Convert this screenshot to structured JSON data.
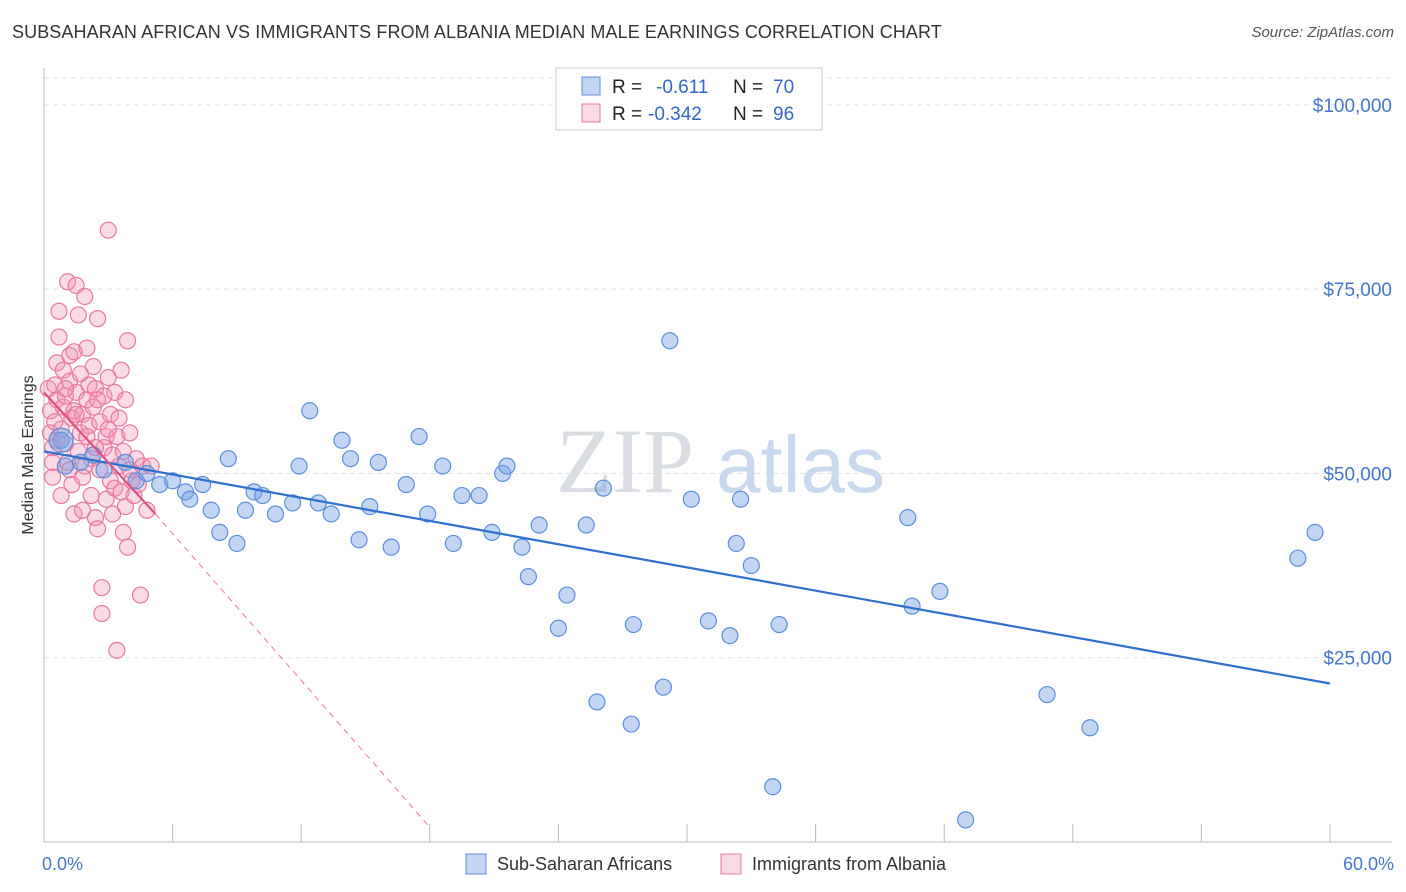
{
  "title": "SUBSAHARAN AFRICAN VS IMMIGRANTS FROM ALBANIA MEDIAN MALE EARNINGS CORRELATION CHART",
  "source": "Source: ZipAtlas.com",
  "watermark": {
    "zip": "ZIP",
    "atlas": "atlas"
  },
  "colors": {
    "blue": "#5b8fdb",
    "blue_fill": "rgba(120,165,230,0.45)",
    "blue_line": "#2f6fd0",
    "pink": "#e8789c",
    "pink_fill": "rgba(240,150,180,0.35)",
    "pink_line": "#e0507e",
    "grid": "#dde3ea",
    "tick_blue": "#4477cc"
  },
  "legend": {
    "rows": [
      {
        "r_label": "R =",
        "r_value": "-0.611",
        "n_label": "N =",
        "n_value": "70"
      },
      {
        "r_label": "R =",
        "r_value": "-0.342",
        "n_label": "N =",
        "n_value": "96"
      }
    ]
  },
  "chart_data": {
    "type": "scatter",
    "title": "SUBSAHARAN AFRICAN VS IMMIGRANTS FROM ALBANIA MEDIAN MALE EARNINGS CORRELATION CHART",
    "xlabel": "",
    "ylabel": "Median Male Earnings",
    "xlim": [
      0,
      60
    ],
    "ylim": [
      0,
      105000
    ],
    "x_tick_labels": {
      "left": "0.0%",
      "right": "60.0%"
    },
    "y_ticks": [
      {
        "value": 25000,
        "label": "$25,000"
      },
      {
        "value": 50000,
        "label": "$50,000"
      },
      {
        "value": 75000,
        "label": "$75,000"
      },
      {
        "value": 100000,
        "label": "$100,000"
      }
    ],
    "grid": true,
    "legend_position": "top-center",
    "series": [
      {
        "name": "Sub-Saharan Africans",
        "color": "#5b8fdb",
        "r": -0.611,
        "n": 70,
        "trend": {
          "x0": 0,
          "y0": 53000,
          "x1": 60,
          "y1": 21500
        },
        "points": [
          [
            0.8,
            54500
          ],
          [
            1.0,
            51000
          ],
          [
            1.7,
            51500
          ],
          [
            2.3,
            52500
          ],
          [
            2.8,
            50500
          ],
          [
            3.8,
            51500
          ],
          [
            4.3,
            49000
          ],
          [
            4.8,
            50000
          ],
          [
            5.4,
            48500
          ],
          [
            6.0,
            49000
          ],
          [
            6.6,
            47500
          ],
          [
            6.8,
            46500
          ],
          [
            7.4,
            48500
          ],
          [
            7.8,
            45000
          ],
          [
            8.2,
            42000
          ],
          [
            8.6,
            52000
          ],
          [
            9.0,
            40500
          ],
          [
            9.4,
            45000
          ],
          [
            9.8,
            47500
          ],
          [
            10.2,
            47000
          ],
          [
            10.8,
            44500
          ],
          [
            11.6,
            46000
          ],
          [
            11.9,
            51000
          ],
          [
            12.4,
            58500
          ],
          [
            12.8,
            46000
          ],
          [
            13.4,
            44500
          ],
          [
            13.9,
            54500
          ],
          [
            14.3,
            52000
          ],
          [
            14.7,
            41000
          ],
          [
            15.2,
            45500
          ],
          [
            15.6,
            51500
          ],
          [
            16.2,
            40000
          ],
          [
            16.9,
            48500
          ],
          [
            17.5,
            55000
          ],
          [
            17.9,
            44500
          ],
          [
            18.6,
            51000
          ],
          [
            19.1,
            40500
          ],
          [
            19.5,
            47000
          ],
          [
            20.3,
            47000
          ],
          [
            20.9,
            42000
          ],
          [
            21.4,
            50000
          ],
          [
            21.6,
            51000
          ],
          [
            22.3,
            40000
          ],
          [
            22.6,
            36000
          ],
          [
            23.1,
            43000
          ],
          [
            24.0,
            29000
          ],
          [
            24.4,
            33500
          ],
          [
            25.3,
            43000
          ],
          [
            25.8,
            19000
          ],
          [
            26.1,
            48000
          ],
          [
            27.4,
            16000
          ],
          [
            27.5,
            29500
          ],
          [
            28.9,
            21000
          ],
          [
            29.2,
            68000
          ],
          [
            30.2,
            46500
          ],
          [
            31.0,
            30000
          ],
          [
            32.0,
            28000
          ],
          [
            32.3,
            40500
          ],
          [
            32.5,
            46500
          ],
          [
            33.0,
            37500
          ],
          [
            34.0,
            7500
          ],
          [
            34.3,
            29500
          ],
          [
            40.3,
            44000
          ],
          [
            40.5,
            32000
          ],
          [
            41.8,
            34000
          ],
          [
            46.8,
            20000
          ],
          [
            48.8,
            15500
          ],
          [
            58.5,
            38500
          ],
          [
            59.3,
            42000
          ],
          [
            43.0,
            3000
          ]
        ]
      },
      {
        "name": "Immigrants from Albania",
        "color": "#e8789c",
        "r": -0.342,
        "n": 96,
        "trend": {
          "x0": 0,
          "y0": 61000,
          "x1": 5.2,
          "y1": 44500
        },
        "trend_extension": {
          "x0": 5.2,
          "y0": 44500,
          "x1": 18.0,
          "y1": 2000
        },
        "points": [
          [
            0.2,
            61500
          ],
          [
            0.3,
            58500
          ],
          [
            0.3,
            55500
          ],
          [
            0.4,
            53500
          ],
          [
            0.4,
            51500
          ],
          [
            0.4,
            49500
          ],
          [
            0.5,
            57000
          ],
          [
            0.5,
            62000
          ],
          [
            0.6,
            65000
          ],
          [
            0.6,
            60000
          ],
          [
            0.7,
            68500
          ],
          [
            0.7,
            72000
          ],
          [
            0.8,
            56000
          ],
          [
            0.8,
            47000
          ],
          [
            0.9,
            64000
          ],
          [
            0.9,
            59000
          ],
          [
            1.0,
            60500
          ],
          [
            1.0,
            54000
          ],
          [
            1.1,
            76000
          ],
          [
            1.1,
            51500
          ],
          [
            1.2,
            62500
          ],
          [
            1.2,
            66000
          ],
          [
            1.3,
            57500
          ],
          [
            1.3,
            48500
          ],
          [
            1.4,
            58500
          ],
          [
            1.4,
            44500
          ],
          [
            1.5,
            61000
          ],
          [
            1.5,
            75500
          ],
          [
            1.6,
            53000
          ],
          [
            1.6,
            71500
          ],
          [
            1.7,
            55500
          ],
          [
            1.7,
            63500
          ],
          [
            1.8,
            58000
          ],
          [
            1.8,
            45000
          ],
          [
            1.9,
            74000
          ],
          [
            1.9,
            51000
          ],
          [
            2.0,
            60000
          ],
          [
            2.0,
            67000
          ],
          [
            2.1,
            62000
          ],
          [
            2.1,
            56500
          ],
          [
            2.2,
            52000
          ],
          [
            2.2,
            47000
          ],
          [
            2.3,
            59000
          ],
          [
            2.3,
            64500
          ],
          [
            2.4,
            61500
          ],
          [
            2.4,
            44000
          ],
          [
            2.5,
            42500
          ],
          [
            2.5,
            71000
          ],
          [
            2.6,
            57000
          ],
          [
            2.6,
            50500
          ],
          [
            2.7,
            34500
          ],
          [
            2.7,
            31000
          ],
          [
            2.8,
            53500
          ],
          [
            2.8,
            60500
          ],
          [
            2.9,
            46500
          ],
          [
            2.9,
            55000
          ],
          [
            3.0,
            83000
          ],
          [
            3.0,
            63000
          ],
          [
            3.1,
            58000
          ],
          [
            3.1,
            49000
          ],
          [
            3.2,
            52500
          ],
          [
            3.2,
            44500
          ],
          [
            3.3,
            61000
          ],
          [
            3.3,
            48000
          ],
          [
            3.4,
            26000
          ],
          [
            3.4,
            55000
          ],
          [
            3.5,
            57500
          ],
          [
            3.5,
            51000
          ],
          [
            3.6,
            47500
          ],
          [
            3.6,
            64000
          ],
          [
            3.7,
            53000
          ],
          [
            3.7,
            42000
          ],
          [
            3.8,
            45500
          ],
          [
            3.8,
            60000
          ],
          [
            3.9,
            68000
          ],
          [
            3.9,
            40000
          ],
          [
            4.0,
            55500
          ],
          [
            4.0,
            50500
          ],
          [
            4.1,
            49000
          ],
          [
            4.2,
            47000
          ],
          [
            4.3,
            52000
          ],
          [
            4.4,
            48500
          ],
          [
            4.5,
            33500
          ],
          [
            4.6,
            51000
          ],
          [
            4.8,
            45000
          ],
          [
            5.0,
            51000
          ],
          [
            1.0,
            61500
          ],
          [
            1.5,
            58000
          ],
          [
            2.0,
            55000
          ],
          [
            2.5,
            60000
          ],
          [
            0.6,
            54500
          ],
          [
            1.2,
            50500
          ],
          [
            1.8,
            49500
          ],
          [
            2.4,
            53500
          ],
          [
            3.0,
            56000
          ],
          [
            1.4,
            66500
          ]
        ]
      }
    ]
  },
  "bottom_legend": {
    "items": [
      {
        "label": "Sub-Saharan Africans"
      },
      {
        "label": "Immigrants from Albania"
      }
    ]
  }
}
